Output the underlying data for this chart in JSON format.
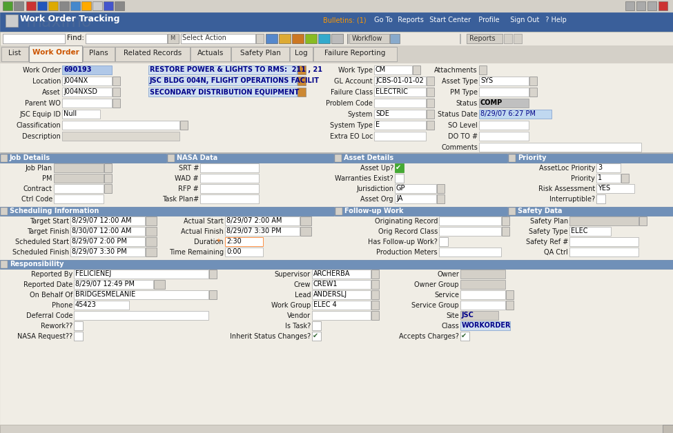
{
  "title": "Work Order Tracking",
  "header_bg": "#3a5f9a",
  "section_bg": "#7090b8",
  "body_bg": "#ece9e0",
  "tab_bar_bg": "#d4d0c8",
  "field_white": "#ffffff",
  "field_gray": "#d4d0c8",
  "field_blue_hl": "#b0c8e8",
  "field_comp": "#c0c0c0",
  "field_status_date": "#c0d8f0",
  "field_desc_bg": "#d0dff0",
  "workorder_value": "690193",
  "wo_desc": "RESTORE POWER & LIGHTS TO RMS:  211 , 21",
  "location_value": "J004NX",
  "location_desc": "JSC BLDG 004N, FLIGHT OPERATIONS FACILIT",
  "asset_value": "J004NXSD",
  "asset_desc": "SECONDARY DISTRIBUTION EQUIPMENT",
  "jsc_equip_id": "Null",
  "work_type": "CM",
  "gl_account": "JCBS-01-01-02",
  "failure_class": "ELECTRIC",
  "system": "SDE",
  "system_type": "E",
  "asset_type": "SYS",
  "status": "COMP",
  "status_date": "8/29/07 6:27 PM",
  "jurisdiction": "GP",
  "asset_org": "JA",
  "assetloc_priority": "3",
  "priority": "1",
  "risk_assessment": "YES",
  "target_start": "8/29/07 12:00 AM",
  "target_finish": "8/30/07 12:00 AM",
  "scheduled_start": "8/29/07 2:00 PM",
  "scheduled_finish": "8/29/07 3:30 PM",
  "actual_start": "8/29/07 2:00 AM",
  "actual_finish": "8/29/07 3:30 PM",
  "duration": "2:30",
  "time_remaining": "0:00",
  "safety_type": "ELEC",
  "reported_by": "FELICIENEJ",
  "reported_date": "8/29/07 12:49 PM",
  "on_behalf_of": "BRIDGESMELANIE",
  "phone": "45423",
  "supervisor": "ARCHERBA",
  "crew": "CREW1",
  "lead": "ANDERSLJ",
  "work_group": "ELEC 4",
  "site": "JSC",
  "class_val": "WORKORDER",
  "tabs": [
    "List",
    "Work Order",
    "Plans",
    "Related Records",
    "Actuals",
    "Safety Plan",
    "Log",
    "Failure Reporting"
  ],
  "active_tab": "Work Order"
}
